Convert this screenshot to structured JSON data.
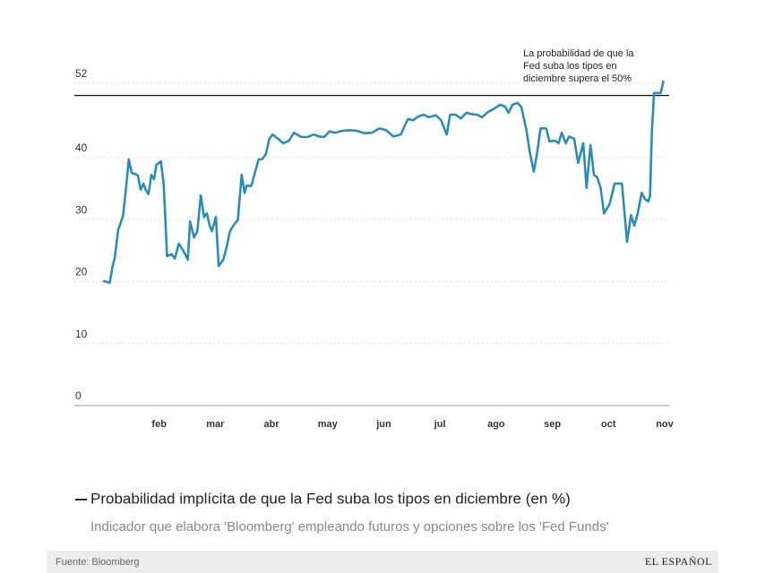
{
  "chart_data": {
    "type": "line",
    "title": "Probabilidad implícita de que la Fed suba los tipos en diciembre (en %)",
    "subtitle": "Indicador que elabora 'Bloomberg' empleando futuros y opciones sobre los 'Fed Funds'",
    "source": "Fuente: Bloomberg",
    "brand": "EL ESPAÑOL",
    "reference_line": {
      "value": 50,
      "annotation": [
        "La probabilidad de que la",
        "Fed suba los tipos en",
        "diciembre supera el 50%"
      ]
    },
    "color": "#2b8db5",
    "grid": true,
    "xlim": [
      0.49,
      11.08
    ],
    "xticks": [
      {
        "value": 2,
        "label": "feb"
      },
      {
        "value": 3,
        "label": "mar"
      },
      {
        "value": 4,
        "label": "abr"
      },
      {
        "value": 5,
        "label": "may"
      },
      {
        "value": 6,
        "label": "jun"
      },
      {
        "value": 7,
        "label": "jul"
      },
      {
        "value": 8,
        "label": "ago"
      },
      {
        "value": 9,
        "label": "sep"
      },
      {
        "value": 10,
        "label": "oct"
      },
      {
        "value": 11,
        "label": "nov"
      }
    ],
    "ylim": [
      0,
      55
    ],
    "yticks": [
      0,
      10,
      20,
      30,
      40,
      52
    ],
    "x": [
      1.0,
      1.12,
      1.17,
      1.21,
      1.27,
      1.31,
      1.36,
      1.41,
      1.46,
      1.51,
      1.56,
      1.62,
      1.67,
      1.72,
      1.76,
      1.81,
      1.86,
      1.91,
      1.95,
      2.03,
      2.08,
      2.14,
      2.22,
      2.28,
      2.35,
      2.43,
      2.51,
      2.55,
      2.62,
      2.68,
      2.74,
      2.8,
      2.85,
      2.9,
      2.94,
      3.01,
      3.06,
      3.14,
      3.2,
      3.26,
      3.34,
      3.4,
      3.47,
      3.52,
      3.56,
      3.64,
      3.71,
      3.77,
      3.83,
      3.9,
      3.96,
      4.02,
      4.12,
      4.21,
      4.31,
      4.4,
      4.53,
      4.64,
      4.75,
      4.85,
      4.94,
      5.03,
      5.13,
      5.26,
      5.39,
      5.51,
      5.67,
      5.79,
      5.92,
      6.04,
      6.17,
      6.3,
      6.43,
      6.52,
      6.61,
      6.71,
      6.8,
      6.93,
      7.02,
      7.12,
      7.18,
      7.28,
      7.37,
      7.47,
      7.56,
      7.66,
      7.75,
      7.85,
      7.97,
      8.07,
      8.16,
      8.22,
      8.29,
      8.38,
      8.45,
      8.54,
      8.6,
      8.67,
      8.73,
      8.79,
      8.89,
      8.95,
      9.05,
      9.11,
      9.17,
      9.24,
      9.3,
      9.39,
      9.46,
      9.55,
      9.61,
      9.68,
      9.74,
      9.8,
      9.86,
      9.92,
      10.02,
      10.11,
      10.24,
      10.33,
      10.4,
      10.46,
      10.52,
      10.59,
      10.65,
      10.71,
      10.74,
      10.77,
      10.81,
      10.93,
      10.98
    ],
    "values": [
      20.1,
      19.8,
      22.4,
      23.8,
      28.3,
      29.3,
      30.7,
      35.1,
      39.7,
      37.5,
      37.4,
      37.1,
      34.8,
      35.8,
      34.8,
      34.1,
      37.2,
      36.5,
      38.8,
      39.4,
      35.8,
      24.1,
      24.4,
      23.7,
      26.1,
      25.0,
      23.5,
      29.7,
      27.1,
      28.1,
      33.9,
      30.4,
      31.0,
      29.0,
      28.1,
      30.4,
      22.5,
      23.5,
      25.5,
      28.1,
      29.3,
      29.9,
      37.2,
      34.3,
      35.5,
      35.4,
      37.7,
      39.7,
      39.7,
      40.5,
      43.0,
      43.7,
      43.0,
      42.3,
      42.7,
      44.0,
      43.3,
      43.3,
      43.7,
      43.4,
      43.3,
      44.2,
      44.0,
      44.3,
      44.4,
      44.3,
      43.9,
      44.0,
      44.7,
      44.4,
      43.4,
      43.7,
      46.2,
      46.0,
      46.6,
      46.9,
      46.5,
      46.8,
      46.0,
      43.7,
      46.9,
      46.9,
      46.3,
      47.2,
      47.0,
      46.9,
      46.5,
      47.3,
      47.9,
      48.5,
      48.2,
      47.2,
      48.5,
      48.8,
      48.1,
      44.4,
      40.8,
      37.7,
      40.8,
      44.7,
      44.7,
      42.6,
      42.7,
      42.3,
      44.0,
      42.3,
      43.4,
      43.0,
      39.1,
      42.3,
      35.1,
      42.0,
      37.2,
      36.8,
      35.1,
      31.0,
      32.5,
      35.8,
      35.8,
      26.4,
      30.7,
      29.0,
      31.0,
      34.3,
      33.3,
      32.9,
      33.9,
      43.7,
      50.4,
      50.4,
      52.4
    ]
  }
}
